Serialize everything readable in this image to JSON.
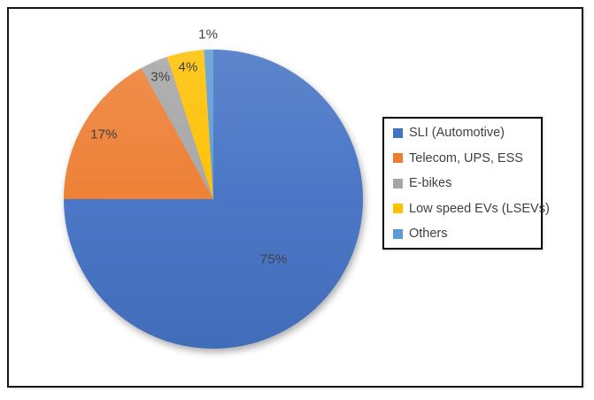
{
  "chart_data": {
    "type": "pie",
    "categories": [
      "SLI (Automotive)",
      "Telecom, UPS, ESS",
      "E-bikes",
      "Low speed EVs (LSEVs)",
      "Others"
    ],
    "values": [
      75,
      17,
      3,
      4,
      1
    ],
    "data_labels": [
      "75%",
      "17%",
      "3%",
      "4%",
      "1%"
    ],
    "colors": [
      "#4472C4",
      "#ED7D31",
      "#A5A5A5",
      "#FFC000",
      "#5B9BD5"
    ],
    "label_color": "#404040",
    "legend": {
      "position": "right",
      "entries": [
        "SLI (Automotive)",
        "Telecom, UPS, ESS",
        "E-bikes",
        "Low speed EVs (LSEVs)",
        "Others"
      ]
    },
    "start_angle_deg": 0,
    "direction": "clockwise",
    "title": ""
  }
}
